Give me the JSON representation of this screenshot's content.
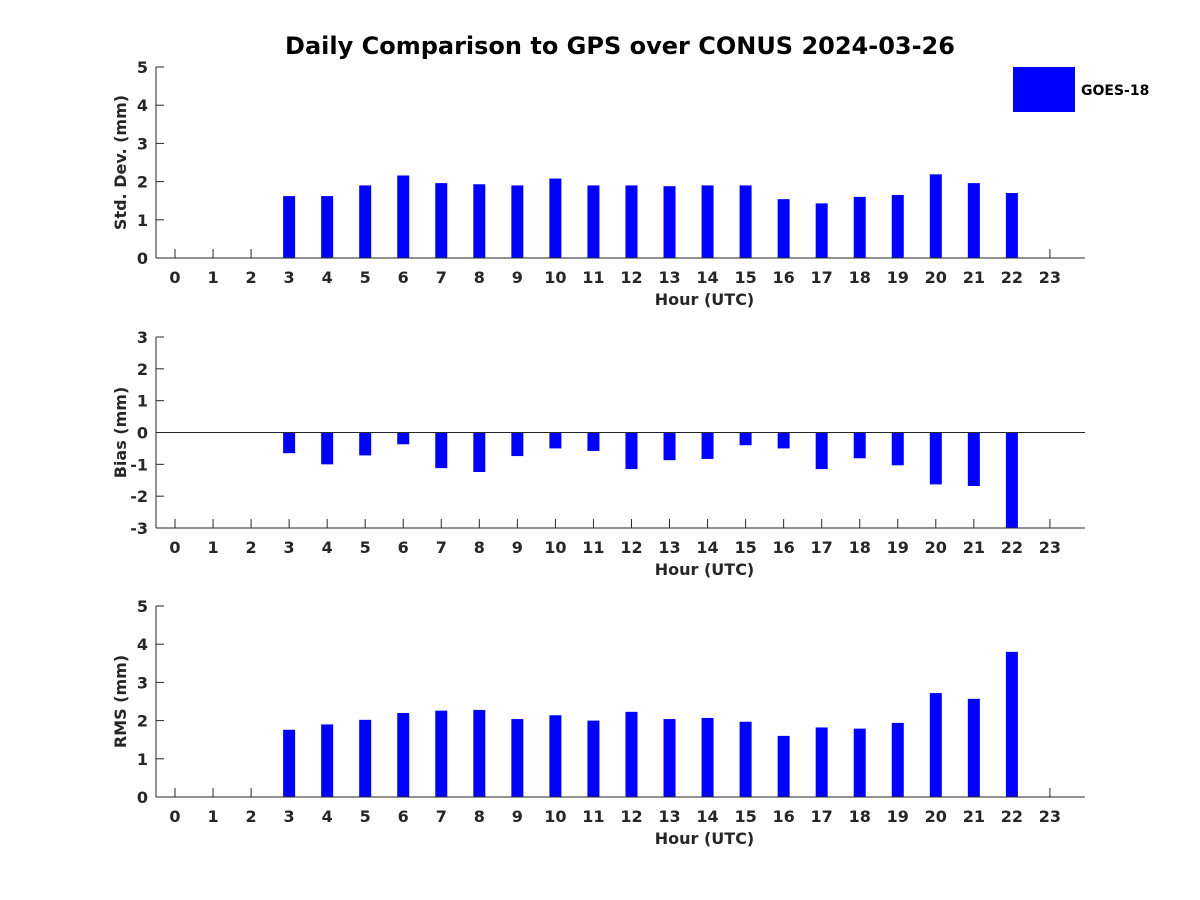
{
  "title": "Daily Comparison to GPS over CONUS 2024-03-26",
  "legend": {
    "label": "GOES-18",
    "color": "#0000ff",
    "position": "top-right"
  },
  "chart_data": [
    {
      "type": "bar",
      "xlabel": "Hour (UTC)",
      "ylabel": "Std. Dev. (mm)",
      "ylim": [
        0,
        5
      ],
      "yticks": [
        0,
        1,
        2,
        3,
        4,
        5
      ],
      "categories": [
        "0",
        "1",
        "2",
        "3",
        "4",
        "5",
        "6",
        "7",
        "8",
        "9",
        "10",
        "11",
        "12",
        "13",
        "14",
        "15",
        "16",
        "17",
        "18",
        "19",
        "20",
        "21",
        "22",
        "23"
      ],
      "series": [
        {
          "name": "GOES-18",
          "values": [
            null,
            null,
            null,
            1.62,
            1.62,
            1.9,
            2.16,
            1.96,
            1.93,
            1.9,
            2.08,
            1.9,
            1.9,
            1.88,
            1.9,
            1.9,
            1.54,
            1.43,
            1.6,
            1.65,
            2.19,
            1.96,
            1.7,
            null
          ]
        }
      ]
    },
    {
      "type": "bar",
      "xlabel": "Hour (UTC)",
      "ylabel": "Bias (mm)",
      "ylim": [
        -3,
        3
      ],
      "yticks": [
        -3,
        -2,
        -1,
        0,
        1,
        2,
        3
      ],
      "categories": [
        "0",
        "1",
        "2",
        "3",
        "4",
        "5",
        "6",
        "7",
        "8",
        "9",
        "10",
        "11",
        "12",
        "13",
        "14",
        "15",
        "16",
        "17",
        "18",
        "19",
        "20",
        "21",
        "22",
        "23"
      ],
      "series": [
        {
          "name": "GOES-18",
          "values": [
            null,
            null,
            null,
            -0.65,
            -1.0,
            -0.72,
            -0.37,
            -1.12,
            -1.24,
            -0.74,
            -0.5,
            -0.58,
            -1.15,
            -0.87,
            -0.83,
            -0.4,
            -0.5,
            -1.15,
            -0.81,
            -1.03,
            -1.63,
            -1.68,
            -3.0,
            null
          ]
        }
      ]
    },
    {
      "type": "bar",
      "xlabel": "Hour (UTC)",
      "ylabel": "RMS (mm)",
      "ylim": [
        0,
        5
      ],
      "yticks": [
        0,
        1,
        2,
        3,
        4,
        5
      ],
      "categories": [
        "0",
        "1",
        "2",
        "3",
        "4",
        "5",
        "6",
        "7",
        "8",
        "9",
        "10",
        "11",
        "12",
        "13",
        "14",
        "15",
        "16",
        "17",
        "18",
        "19",
        "20",
        "21",
        "22",
        "23"
      ],
      "series": [
        {
          "name": "GOES-18",
          "values": [
            null,
            null,
            null,
            1.76,
            1.9,
            2.02,
            2.2,
            2.26,
            2.28,
            2.04,
            2.14,
            2.0,
            2.23,
            2.04,
            2.07,
            1.97,
            1.6,
            1.82,
            1.79,
            1.94,
            2.72,
            2.57,
            3.8,
            null
          ]
        }
      ]
    }
  ]
}
